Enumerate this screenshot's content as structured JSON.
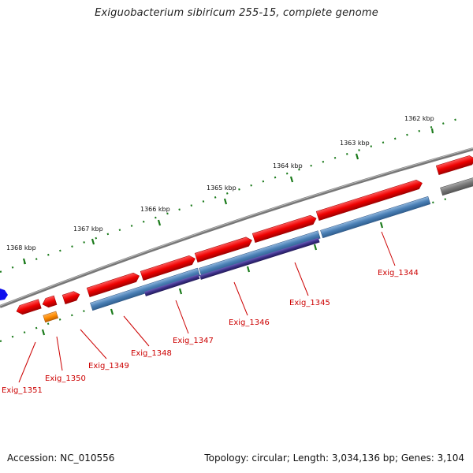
{
  "title": "Exiguobacterium sibiricum 255-15, complete genome",
  "footer": {
    "accession": "Accession: NC_010556",
    "topology": "Topology: circular; Length: 3,034,136 bp; Genes: 3,104"
  },
  "scale_ticks": [
    "1362 kbp",
    "1363 kbp",
    "1364 kbp",
    "1365 kbp",
    "1366 kbp",
    "1367 kbp",
    "1368 kbp"
  ],
  "gene_labels": [
    "Exig_1344",
    "Exig_1345",
    "Exig_1346",
    "Exig_1347",
    "Exig_1348",
    "Exig_1349",
    "Exig_1350",
    "Exig_1351"
  ],
  "colors": {
    "cds": "#ee0000",
    "blue_feature": "#4a7fb5",
    "purple_feature": "#3b2f86",
    "orange_feature": "#ff8c00",
    "backbone": "#808080",
    "tick": "#1a7a1a",
    "label": "#cc0000"
  }
}
